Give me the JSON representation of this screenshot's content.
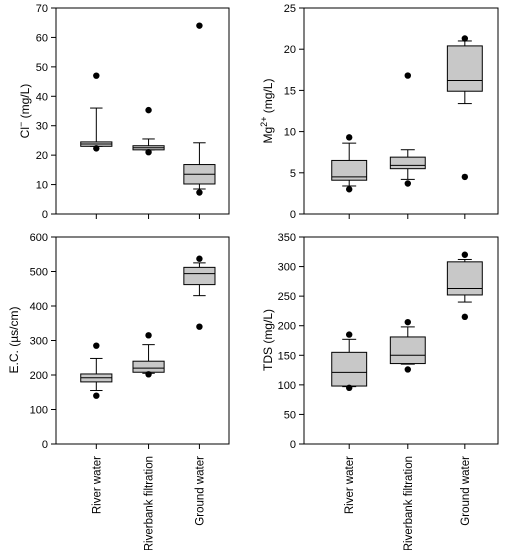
{
  "chart_data": [
    {
      "type": "box",
      "ylabel": "Cl⁻ (mg/L)",
      "ylabel_base": "Cl",
      "ylabel_sup": "−",
      "ylabel_rest": " (mg/L)",
      "ylim": [
        0,
        70
      ],
      "yticks": [
        "0",
        "10",
        "20",
        "30",
        "40",
        "50",
        "60",
        "70"
      ],
      "categories": [
        "River water",
        "Riverbank filtration",
        "Ground water"
      ],
      "boxes": [
        {
          "whisker_low": 23,
          "q1": 23,
          "median": 23.8,
          "q3": 24.5,
          "whisker_high": 36,
          "outliers": [
            47,
            22.3
          ]
        },
        {
          "whisker_low": 21.8,
          "q1": 21.8,
          "median": 22.5,
          "q3": 23.2,
          "whisker_high": 25.5,
          "outliers": [
            35.3,
            21
          ]
        },
        {
          "whisker_low": 8.5,
          "q1": 10.2,
          "median": 13.5,
          "q3": 16.8,
          "whisker_high": 24.2,
          "outliers": [
            64,
            7.3
          ]
        }
      ]
    },
    {
      "type": "box",
      "ylabel": "Mg²⁺ (mg/L)",
      "ylabel_base": "Mg",
      "ylabel_sup": "2+",
      "ylabel_rest": " (mg/L)",
      "ylim": [
        0,
        25
      ],
      "yticks": [
        "0",
        "5",
        "10",
        "15",
        "20",
        "25"
      ],
      "categories": [
        "River water",
        "Riverbank filtration",
        "Ground water"
      ],
      "boxes": [
        {
          "whisker_low": 3.4,
          "q1": 4.1,
          "median": 4.5,
          "q3": 6.5,
          "whisker_high": 8.6,
          "outliers": [
            9.3,
            3
          ]
        },
        {
          "whisker_low": 4.2,
          "q1": 5.5,
          "median": 5.9,
          "q3": 6.9,
          "whisker_high": 7.8,
          "outliers": [
            16.8,
            3.7
          ]
        },
        {
          "whisker_low": 13.4,
          "q1": 14.9,
          "median": 16.2,
          "q3": 20.4,
          "whisker_high": 21,
          "outliers": [
            21.3,
            4.5
          ]
        }
      ]
    },
    {
      "type": "box",
      "ylabel": "E.C. (µs/cm)",
      "ylabel_base": "E.C. (µs/cm)",
      "ylabel_sup": "",
      "ylabel_rest": "",
      "ylim": [
        0,
        600
      ],
      "yticks": [
        "0",
        "100",
        "200",
        "300",
        "400",
        "500",
        "600"
      ],
      "categories": [
        "River water",
        "Riverbank filtration",
        "Ground water"
      ],
      "boxes": [
        {
          "whisker_low": 155,
          "q1": 180,
          "median": 192,
          "q3": 203,
          "whisker_high": 248,
          "outliers": [
            285,
            140
          ]
        },
        {
          "whisker_low": 205,
          "q1": 208,
          "median": 220,
          "q3": 240,
          "whisker_high": 288,
          "outliers": [
            315,
            202
          ]
        },
        {
          "whisker_low": 430,
          "q1": 462,
          "median": 494,
          "q3": 512,
          "whisker_high": 525,
          "outliers": [
            537,
            340
          ]
        }
      ]
    },
    {
      "type": "box",
      "ylabel": "TDS (mg/L)",
      "ylabel_base": "TDS (mg/L)",
      "ylabel_sup": "",
      "ylabel_rest": "",
      "ylim": [
        0,
        350
      ],
      "yticks": [
        "0",
        "50",
        "100",
        "150",
        "200",
        "250",
        "300",
        "350"
      ],
      "categories": [
        "River water",
        "Riverbank filtration",
        "Ground water"
      ],
      "boxes": [
        {
          "whisker_low": 97,
          "q1": 98,
          "median": 121,
          "q3": 155,
          "whisker_high": 177,
          "outliers": [
            185,
            95
          ]
        },
        {
          "whisker_low": 135,
          "q1": 136,
          "median": 150,
          "q3": 181,
          "whisker_high": 198,
          "outliers": [
            206,
            126
          ]
        },
        {
          "whisker_low": 240,
          "q1": 252,
          "median": 263,
          "q3": 308,
          "whisker_high": 312,
          "outliers": [
            320,
            215
          ]
        }
      ]
    }
  ]
}
